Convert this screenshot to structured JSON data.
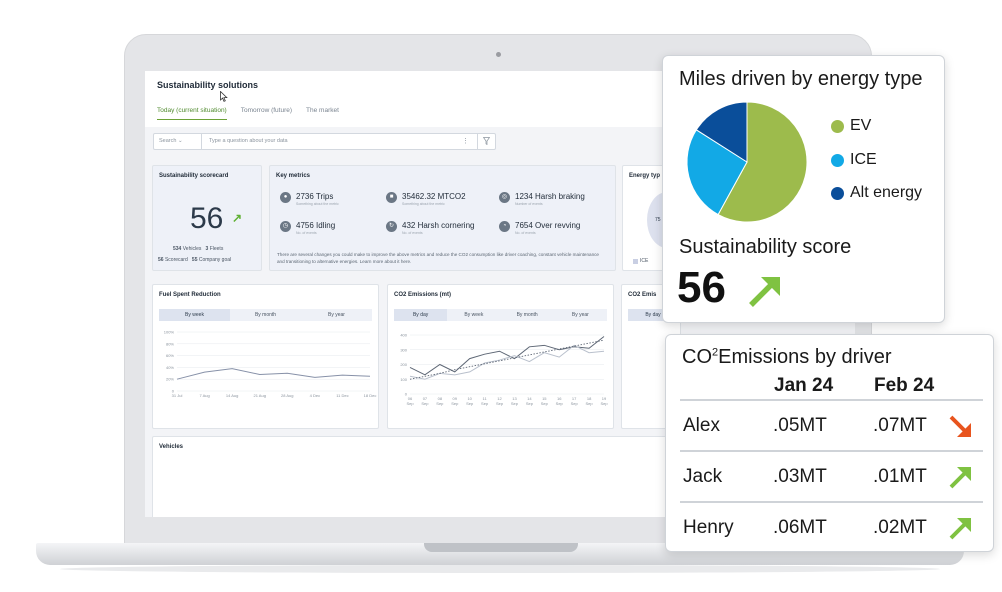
{
  "app": {
    "title": "Sustainability solutions",
    "tabs": [
      "Today (current situation)",
      "Tomorrow (future)",
      "The market"
    ],
    "active_tab": 0,
    "search": {
      "select_label": "Search",
      "placeholder": "Type a question about your data"
    }
  },
  "scorecard": {
    "title": "Sustainability scorecard",
    "score": "56",
    "vehicles": "534",
    "vehicles_label": "Vehicles",
    "fleets": "3",
    "fleets_label": "Fleets",
    "scorecard": "56",
    "scorecard_label": "Scorecard",
    "company_goal": "55",
    "company_goal_label": "Company goal"
  },
  "key_metrics": {
    "title": "Key metrics",
    "items": [
      {
        "value": "2736 Trips",
        "sub": "Something about the metric",
        "icon": "location-pin-icon"
      },
      {
        "value": "35462.32 MTCO2",
        "sub": "Something about the metric",
        "icon": "truck-icon"
      },
      {
        "value": "1234 Harsh braking",
        "sub": "Number of events",
        "icon": "brake-icon"
      },
      {
        "value": "4756 Idling",
        "sub": "No. of events",
        "icon": "clock-icon"
      },
      {
        "value": "432 Harsh cornering",
        "sub": "No. of events",
        "icon": "steering-icon"
      },
      {
        "value": "7654 Over revving",
        "sub": "No. of events",
        "icon": "gauge-icon"
      }
    ],
    "note": "There are several changes you could make to improve the above metrics and reduce the CO2 consumption like driver coaching, constant vehicle maintenance and transitioning to alternative energies. Learn more about it here."
  },
  "energy_card": {
    "title": "Energy typ",
    "value_partial": "75",
    "legend": "ICE"
  },
  "fuel_chart": {
    "title": "Fuel Spent Reduction",
    "segments": [
      "By week",
      "By month",
      "By year"
    ],
    "active": 0
  },
  "co2_chart": {
    "title": "CO2 Emissions (mt)",
    "segments": [
      "By day",
      "By week",
      "By month",
      "By year"
    ],
    "active": 0
  },
  "co2_chart_partial": {
    "title": "CO2 Emis",
    "segment": "By day"
  },
  "vehicles_section": {
    "title": "Vehicles"
  },
  "chart_data": [
    {
      "type": "line",
      "title": "Fuel Spent Reduction",
      "categories": [
        "31 Jul",
        "7 Aug",
        "14 Aug",
        "21 Aug",
        "28 Aug",
        "4 Dec",
        "11 Dec",
        "18 Dec"
      ],
      "series": [
        {
          "values": [
            20,
            32,
            38,
            28,
            30,
            23,
            27,
            25
          ]
        }
      ],
      "yticks": [
        "100%",
        "80%",
        "60%",
        "40%",
        "20%",
        "0"
      ],
      "ylim": [
        0,
        100
      ]
    },
    {
      "type": "line",
      "title": "CO2 Emissions (mt)",
      "categories": [
        "06 Sep",
        "07 Sep",
        "08 Sep",
        "09 Sep",
        "10 Sep",
        "11 Sep",
        "12 Sep",
        "13 Sep",
        "14 Sep",
        "15 Sep",
        "16 Sep",
        "17 Sep",
        "18 Sep",
        "19 Sep"
      ],
      "series": [
        {
          "values": [
            180,
            130,
            200,
            150,
            240,
            270,
            290,
            240,
            320,
            330,
            300,
            320,
            310,
            390
          ]
        },
        {
          "values": [
            120,
            100,
            140,
            130,
            150,
            210,
            230,
            260,
            220,
            280,
            250,
            330,
            280,
            290
          ]
        },
        {
          "values": [
            100,
            120,
            140,
            165,
            185,
            205,
            225,
            245,
            265,
            285,
            305,
            325,
            345,
            365
          ],
          "style": "dashed"
        }
      ],
      "yticks": [
        "400",
        "300",
        "200",
        "100",
        "0"
      ],
      "ylim": [
        0,
        400
      ]
    },
    {
      "type": "pie",
      "title": "Miles driven by energy type",
      "categories": [
        "EV",
        "ICE",
        "Alt energy"
      ],
      "values": [
        58,
        26,
        16
      ],
      "colors": [
        "#9dbb4c",
        "#12a9e6",
        "#0a4e9a"
      ]
    }
  ],
  "miles_card": {
    "title": "Miles driven by energy type",
    "legend": [
      "EV",
      "ICE",
      "Alt energy"
    ],
    "score_label": "Sustainability score",
    "score": "56"
  },
  "emissions_card": {
    "title_prefix": "CO",
    "title_sup": "2",
    "title_suffix": "Emissions by driver",
    "columns": [
      "Jan 24",
      "Feb 24"
    ],
    "rows": [
      {
        "driver": "Alex",
        "jan": ".05MT",
        "feb": ".07MT",
        "trend": "up-bad",
        "trend_color": "#e8541e"
      },
      {
        "driver": "Jack",
        "jan": ".03MT",
        "feb": ".01MT",
        "trend": "down-good",
        "trend_color": "#7fc241"
      },
      {
        "driver": "Henry",
        "jan": ".06MT",
        "feb": ".02MT",
        "trend": "down-good",
        "trend_color": "#7fc241"
      }
    ]
  }
}
